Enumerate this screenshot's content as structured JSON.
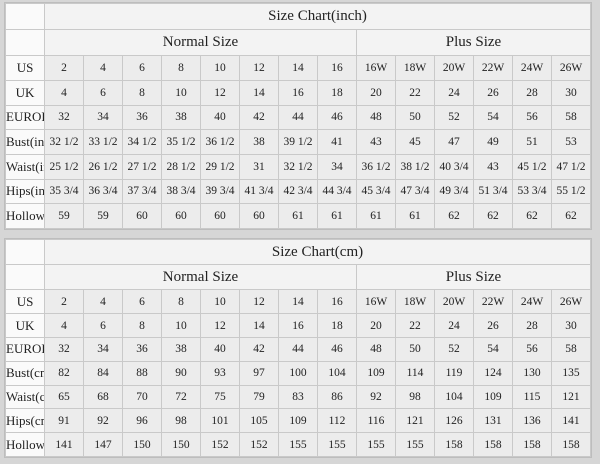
{
  "tables": [
    {
      "title": "Size Chart(inch)",
      "groups": [
        {
          "label": "Normal Size",
          "span": 8
        },
        {
          "label": "Plus Size",
          "span": 6
        }
      ],
      "rows": [
        {
          "label": "US",
          "values": [
            "2",
            "4",
            "6",
            "8",
            "10",
            "12",
            "14",
            "16",
            "16W",
            "18W",
            "20W",
            "22W",
            "24W",
            "26W"
          ]
        },
        {
          "label": "UK",
          "values": [
            "4",
            "6",
            "8",
            "10",
            "12",
            "14",
            "16",
            "18",
            "20",
            "22",
            "24",
            "26",
            "28",
            "30"
          ]
        },
        {
          "label": "EUROPE",
          "values": [
            "32",
            "34",
            "36",
            "38",
            "40",
            "42",
            "44",
            "46",
            "48",
            "50",
            "52",
            "54",
            "56",
            "58"
          ]
        },
        {
          "label": "Bust(inch)",
          "values": [
            "32 1/2",
            "33 1/2",
            "34 1/2",
            "35 1/2",
            "36 1/2",
            "38",
            "39 1/2",
            "41",
            "43",
            "45",
            "47",
            "49",
            "51",
            "53"
          ]
        },
        {
          "label": "Waist(inch)",
          "values": [
            "25 1/2",
            "26 1/2",
            "27 1/2",
            "28 1/2",
            "29 1/2",
            "31",
            "32 1/2",
            "34",
            "36 1/2",
            "38 1/2",
            "40 3/4",
            "43",
            "45 1/2",
            "47 1/2"
          ]
        },
        {
          "label": "Hips(inch)",
          "values": [
            "35 3/4",
            "36 3/4",
            "37 3/4",
            "38 3/4",
            "39 3/4",
            "41 3/4",
            "42 3/4",
            "44 3/4",
            "45 3/4",
            "47 3/4",
            "49 3/4",
            "51 3/4",
            "53 3/4",
            "55 1/2"
          ]
        },
        {
          "label": "Hollow to Floor(inch)",
          "values": [
            "59",
            "59",
            "60",
            "60",
            "60",
            "60",
            "61",
            "61",
            "61",
            "61",
            "62",
            "62",
            "62",
            "62"
          ]
        }
      ]
    },
    {
      "title": "Size Chart(cm)",
      "groups": [
        {
          "label": "Normal Size",
          "span": 8
        },
        {
          "label": "Plus Size",
          "span": 6
        }
      ],
      "rows": [
        {
          "label": "US",
          "values": [
            "2",
            "4",
            "6",
            "8",
            "10",
            "12",
            "14",
            "16",
            "16W",
            "18W",
            "20W",
            "22W",
            "24W",
            "26W"
          ]
        },
        {
          "label": "UK",
          "values": [
            "4",
            "6",
            "8",
            "10",
            "12",
            "14",
            "16",
            "18",
            "20",
            "22",
            "24",
            "26",
            "28",
            "30"
          ]
        },
        {
          "label": "EUROPE",
          "values": [
            "32",
            "34",
            "36",
            "38",
            "40",
            "42",
            "44",
            "46",
            "48",
            "50",
            "52",
            "54",
            "56",
            "58"
          ]
        },
        {
          "label": "Bust(cm)",
          "values": [
            "82",
            "84",
            "88",
            "90",
            "93",
            "97",
            "100",
            "104",
            "109",
            "114",
            "119",
            "124",
            "130",
            "135"
          ]
        },
        {
          "label": "Waist(cm)",
          "values": [
            "65",
            "68",
            "70",
            "72",
            "75",
            "79",
            "83",
            "86",
            "92",
            "98",
            "104",
            "109",
            "115",
            "121"
          ]
        },
        {
          "label": "Hips(cm)",
          "values": [
            "91",
            "92",
            "96",
            "98",
            "101",
            "105",
            "109",
            "112",
            "116",
            "121",
            "126",
            "131",
            "136",
            "141"
          ]
        },
        {
          "label": "Hollow to Floor(cm)",
          "values": [
            "141",
            "147",
            "150",
            "150",
            "152",
            "152",
            "155",
            "155",
            "155",
            "155",
            "158",
            "158",
            "158",
            "158"
          ]
        }
      ]
    }
  ]
}
